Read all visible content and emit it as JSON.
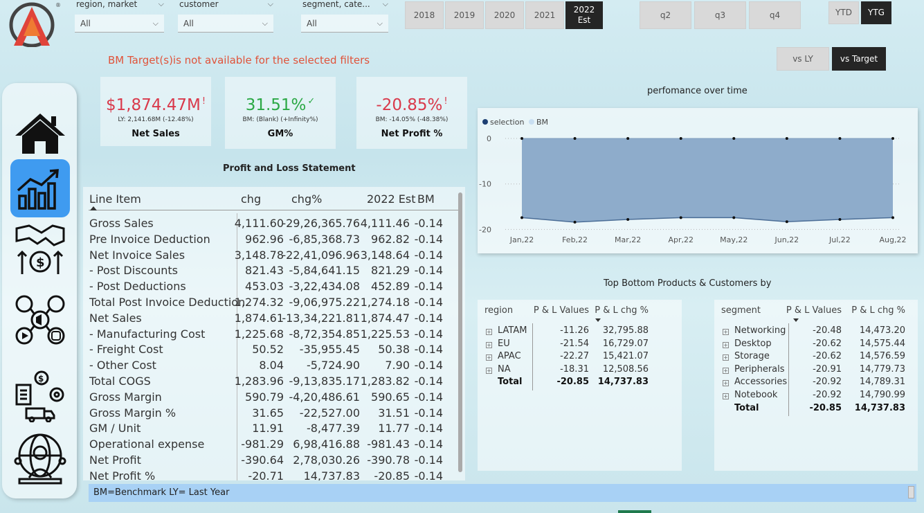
{
  "filters": [
    {
      "label": "region, market",
      "value": "All"
    },
    {
      "label": "customer",
      "value": "All"
    },
    {
      "label": "segment, cate...",
      "value": "All"
    }
  ],
  "years": [
    {
      "label": "2018",
      "selected": false
    },
    {
      "label": "2019",
      "selected": false
    },
    {
      "label": "2020",
      "selected": false
    },
    {
      "label": "2021",
      "selected": false
    },
    {
      "label": "2022\nEst",
      "selected": true
    }
  ],
  "quarters": [
    {
      "label": "q2",
      "selected": false
    },
    {
      "label": "q3",
      "selected": false
    },
    {
      "label": "q4",
      "selected": false
    }
  ],
  "period_toggle": [
    {
      "label": "YTD",
      "selected": false
    },
    {
      "label": "YTG",
      "selected": true
    }
  ],
  "compare_toggle": [
    {
      "label": "vs LY",
      "selected": false
    },
    {
      "label": "vs Target",
      "selected": true
    }
  ],
  "warning": "BM Target(s)is not available for the selected filters",
  "nav": [
    {
      "name": "home",
      "icon": "home-icon"
    },
    {
      "name": "finance",
      "icon": "growth-chart-icon",
      "active": true
    },
    {
      "name": "sales",
      "icon": "handshake-dollar-icon"
    },
    {
      "name": "marketing",
      "icon": "social-media-icon"
    },
    {
      "name": "supply-chain",
      "icon": "logistics-icon"
    },
    {
      "name": "executive",
      "icon": "global-person-icon"
    }
  ],
  "kpis": [
    {
      "value": "$1,874.47M",
      "mark": "!",
      "sub": "LY: 2,141.68M (-12.48%)",
      "name": "Net Sales",
      "color": "#d9394b"
    },
    {
      "value": "31.51%",
      "mark": "✓",
      "sub": "BM: (Blank) (+Infinity%)",
      "name": "GM%",
      "color": "#2aa844"
    },
    {
      "value": "-20.85%",
      "mark": "!",
      "sub": "BM: -14.05% (-48.38%)",
      "name": "Net Profit %",
      "color": "#d9394b"
    }
  ],
  "pl": {
    "title": "Profit and Loss Statement",
    "columns": [
      "Line Item",
      "chg",
      "chg%",
      "2022 Est",
      "BM"
    ],
    "rows": [
      [
        "Gross Sales",
        "4,111.60",
        "-29,26,365.76",
        "4,111.46",
        "-0.14"
      ],
      [
        "Pre Invoice Deduction",
        "962.96",
        "-6,85,368.73",
        "962.82",
        "-0.14"
      ],
      [
        "Net Invoice Sales",
        "3,148.78",
        "-22,41,096.96",
        "3,148.64",
        "-0.14"
      ],
      [
        "- Post Discounts",
        "821.43",
        "-5,84,641.15",
        "821.29",
        "-0.14"
      ],
      [
        "- Post Deductions",
        "453.03",
        "-3,22,434.08",
        "452.89",
        "-0.14"
      ],
      [
        "Total Post Invoice Deduction",
        "1,274.32",
        "-9,06,975.22",
        "1,274.18",
        "-0.14"
      ],
      [
        "Net Sales",
        "1,874.61",
        "-13,34,221.81",
        "1,874.47",
        "-0.14"
      ],
      [
        "- Manufacturing Cost",
        "1,225.68",
        "-8,72,354.85",
        "1,225.53",
        "-0.14"
      ],
      [
        "- Freight Cost",
        "50.52",
        "-35,955.45",
        "50.38",
        "-0.14"
      ],
      [
        "- Other Cost",
        "8.04",
        "-5,724.90",
        "7.90",
        "-0.14"
      ],
      [
        "Total COGS",
        "1,283.96",
        "-9,13,835.17",
        "1,283.82",
        "-0.14"
      ],
      [
        "Gross Margin",
        "590.79",
        "-4,20,486.61",
        "590.65",
        "-0.14"
      ],
      [
        "Gross Margin %",
        "31.65",
        "-22,527.00",
        "31.51",
        "-0.14"
      ],
      [
        "GM / Unit",
        "11.91",
        "-8,477.39",
        "11.77",
        "-0.14"
      ],
      [
        "Operational expense",
        "-981.29",
        "6,98,416.88",
        "-981.43",
        "-0.14"
      ],
      [
        "Net Profit",
        "-390.64",
        "2,78,030.26",
        "-390.78",
        "-0.14"
      ],
      [
        "Net Profit %",
        "-20.71",
        "14,737.83",
        "-20.85",
        "-0.14"
      ]
    ]
  },
  "chart_data": {
    "type": "area",
    "title": "perfomance over time",
    "legend": [
      "selection",
      "BM"
    ],
    "legend_position": "top-left",
    "x": [
      "Jan,22",
      "Feb,22",
      "Mar,22",
      "Apr,22",
      "May,22",
      "Jun,22",
      "Jul,22",
      "Aug,22"
    ],
    "series": [
      {
        "name": "selection",
        "values": [
          -17.4,
          -18.4,
          -17.8,
          -17.4,
          -17.4,
          -18.3,
          -17.8,
          -17.4
        ],
        "color": "#8eaccb"
      },
      {
        "name": "BM",
        "values": [
          0,
          0,
          0,
          0,
          0,
          0,
          0,
          0
        ],
        "color": "#c9dff2"
      }
    ],
    "yticks": [
      "0",
      "-10",
      "-20"
    ],
    "ylim": [
      -21,
      0
    ],
    "grid": true
  },
  "top_bottom_title": "Top Bottom Products & Customers by",
  "region_table": {
    "columns": [
      "region",
      "P & L Values",
      "P & L chg %"
    ],
    "rows": [
      [
        "LATAM",
        "-11.26",
        "32,795.88"
      ],
      [
        "EU",
        "-21.54",
        "16,729.07"
      ],
      [
        "APAC",
        "-22.27",
        "15,421.07"
      ],
      [
        "NA",
        "-18.31",
        "12,508.56"
      ]
    ],
    "total": [
      "Total",
      "-20.85",
      "14,737.83"
    ]
  },
  "segment_table": {
    "columns": [
      "segment",
      "P & L Values",
      "P & L chg %"
    ],
    "rows": [
      [
        "Networking",
        "-20.48",
        "14,473.20"
      ],
      [
        "Desktop",
        "-20.62",
        "14,575.44"
      ],
      [
        "Storage",
        "-20.62",
        "14,576.59"
      ],
      [
        "Peripherals",
        "-20.91",
        "14,779.73"
      ],
      [
        "Accessories",
        "-20.92",
        "14,789.31"
      ],
      [
        "Notebook",
        "-20.92",
        "14,790.99"
      ]
    ],
    "total": [
      "Total",
      "-20.85",
      "14,737.83"
    ]
  },
  "footer": "BM=Benchmark LY= Last Year"
}
